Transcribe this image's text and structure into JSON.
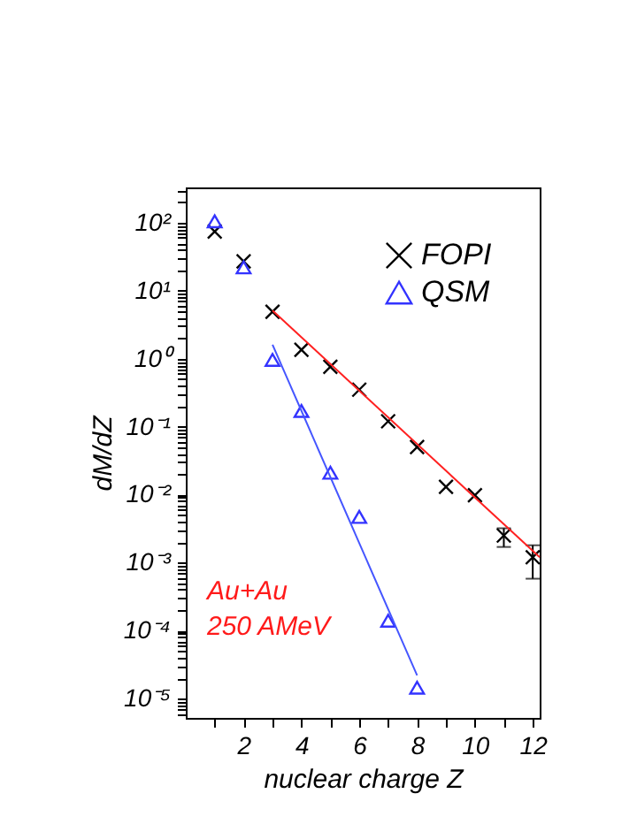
{
  "chart_data": {
    "type": "scatter",
    "xlabel": "nuclear charge Z",
    "ylabel": "dM/dZ",
    "log": "y",
    "legend": "top right",
    "grid": false,
    "xlim": [
      0,
      12.24
    ],
    "ylim": [
      5.2e-06,
      330
    ],
    "xticks": [
      {
        "value": 1,
        "label": null
      },
      2,
      {
        "value": 3,
        "label": null
      },
      4,
      {
        "value": 5,
        "label": null
      },
      6,
      {
        "value": 7,
        "label": null
      },
      8,
      {
        "value": 9,
        "label": null
      },
      10,
      {
        "value": 11,
        "label": null
      },
      12
    ],
    "yticks": [
      {
        "value": 1e-05,
        "label": "10⁻⁵"
      },
      {
        "value": 0.0001,
        "label": "10⁻⁴"
      },
      {
        "value": 0.001,
        "label": "10⁻³"
      },
      {
        "value": 0.01,
        "label": "10⁻²"
      },
      {
        "value": 0.1,
        "label": "10⁻¹"
      },
      {
        "value": 1,
        "label": "10⁰"
      },
      {
        "value": 10,
        "label": "10¹"
      },
      {
        "value": 100,
        "label": "10²"
      },
      {
        "value": 6e-06,
        "label": null
      },
      {
        "value": 7e-06,
        "label": null
      },
      {
        "value": 8e-06,
        "label": null
      },
      {
        "value": 9e-06,
        "label": null
      },
      {
        "value": 2e-05,
        "label": null
      },
      {
        "value": 3e-05,
        "label": null
      },
      {
        "value": 4e-05,
        "label": null
      },
      {
        "value": 5e-05,
        "label": null
      },
      {
        "value": 6e-05,
        "label": null
      },
      {
        "value": 7e-05,
        "label": null
      },
      {
        "value": 8e-05,
        "label": null
      },
      {
        "value": 9e-05,
        "label": null
      },
      {
        "value": 0.0002,
        "label": null
      },
      {
        "value": 0.0003,
        "label": null
      },
      {
        "value": 0.0004,
        "label": null
      },
      {
        "value": 0.0005,
        "label": null
      },
      {
        "value": 0.0006,
        "label": null
      },
      {
        "value": 0.0007,
        "label": null
      },
      {
        "value": 0.0008,
        "label": null
      },
      {
        "value": 0.0009,
        "label": null
      },
      {
        "value": 0.002,
        "label": null
      },
      {
        "value": 0.003,
        "label": null
      },
      {
        "value": 0.004,
        "label": null
      },
      {
        "value": 0.005,
        "label": null
      },
      {
        "value": 0.006,
        "label": null
      },
      {
        "value": 0.007,
        "label": null
      },
      {
        "value": 0.008,
        "label": null
      },
      {
        "value": 0.009,
        "label": null
      },
      {
        "value": 0.02,
        "label": null
      },
      {
        "value": 0.03,
        "label": null
      },
      {
        "value": 0.04,
        "label": null
      },
      {
        "value": 0.05,
        "label": null
      },
      {
        "value": 0.06,
        "label": null
      },
      {
        "value": 0.07,
        "label": null
      },
      {
        "value": 0.08,
        "label": null
      },
      {
        "value": 0.09,
        "label": null
      },
      {
        "value": 0.2,
        "label": null
      },
      {
        "value": 0.3,
        "label": null
      },
      {
        "value": 0.4,
        "label": null
      },
      {
        "value": 0.5,
        "label": null
      },
      {
        "value": 0.6,
        "label": null
      },
      {
        "value": 0.7,
        "label": null
      },
      {
        "value": 0.8,
        "label": null
      },
      {
        "value": 0.9,
        "label": null
      },
      {
        "value": 2,
        "label": null
      },
      {
        "value": 3,
        "label": null
      },
      {
        "value": 4,
        "label": null
      },
      {
        "value": 5,
        "label": null
      },
      {
        "value": 6,
        "label": null
      },
      {
        "value": 7,
        "label": null
      },
      {
        "value": 8,
        "label": null
      },
      {
        "value": 9,
        "label": null
      },
      {
        "value": 20,
        "label": null
      },
      {
        "value": 30,
        "label": null
      },
      {
        "value": 40,
        "label": null
      },
      {
        "value": 50,
        "label": null
      },
      {
        "value": 60,
        "label": null
      },
      {
        "value": 70,
        "label": null
      },
      {
        "value": 80,
        "label": null
      },
      {
        "value": 90,
        "label": null
      },
      {
        "value": 200,
        "label": null
      },
      {
        "value": 300,
        "label": null
      }
    ],
    "x": [
      1,
      2,
      3,
      4,
      5,
      6,
      7,
      8,
      9,
      10,
      11,
      12
    ],
    "series": [
      {
        "name": "FOPI",
        "marker": "cross",
        "color": "#000000",
        "values": [
          74,
          27,
          4.9,
          1.35,
          0.76,
          0.35,
          0.12,
          0.05,
          0.013,
          0.0098,
          0.0025,
          0.0012
        ],
        "errors": [
          null,
          null,
          null,
          null,
          null,
          null,
          null,
          null,
          null,
          null,
          [
            0.0017,
            0.0032
          ],
          [
            0.00058,
            0.0018
          ]
        ]
      },
      {
        "name": "QSM",
        "marker": "triangle",
        "color": "#3333ff",
        "x": [
          1,
          2,
          3,
          4,
          5,
          6,
          7,
          8
        ],
        "values": [
          105,
          22,
          0.96,
          0.17,
          0.021,
          0.0047,
          0.00014,
          1.45e-05
        ]
      },
      {
        "type": "line",
        "color": "#ff2020",
        "x": [
          3,
          12.24
        ],
        "values": [
          5.1,
          0.0012
        ]
      },
      {
        "type": "line",
        "color": "#4455ff",
        "x": [
          3,
          8
        ],
        "values": [
          1.6,
          2.2e-05
        ]
      }
    ],
    "annotations": [
      "Au+Au",
      "250 AMeV"
    ]
  }
}
